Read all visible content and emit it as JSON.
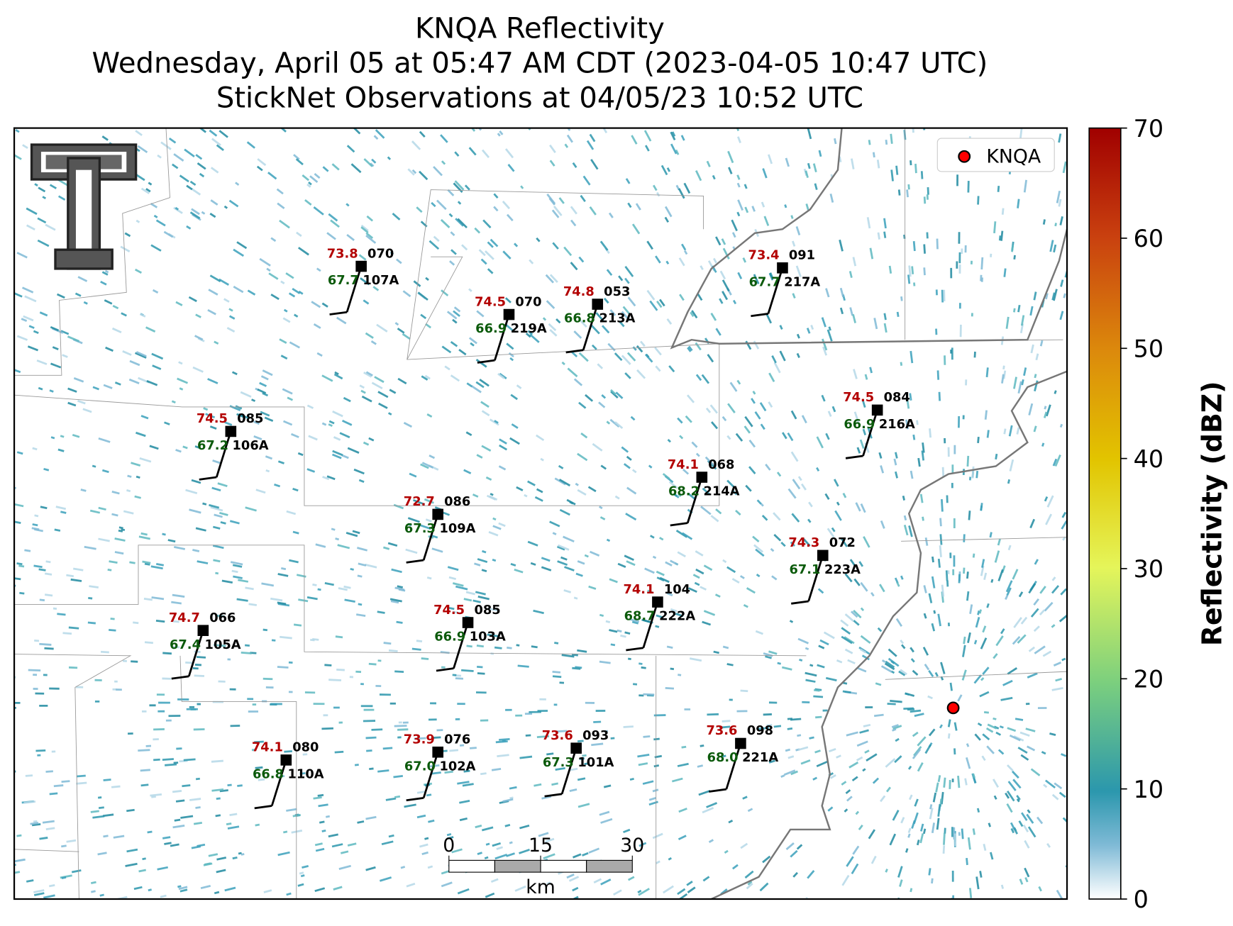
{
  "header": {
    "title": "KNQA Reflectivity",
    "subtitle": "Wednesday, April 05 at 05:47 AM CDT (2023-04-05 10:47 UTC)",
    "observations": "StickNet Observations at 04/05/23 10:52 UTC"
  },
  "legend": {
    "label": "KNQA"
  },
  "colorbar": {
    "label": "Reflectivity (dBZ)",
    "lim": [
      0,
      70
    ],
    "ticks": [
      0,
      10,
      20,
      30,
      40,
      50,
      60,
      70
    ]
  },
  "scale_bar": {
    "ticks": [
      0,
      15,
      30
    ],
    "unit": "km"
  },
  "stations": [
    {
      "id": "107A",
      "temperature": "73.8",
      "dewpoint": "67.7",
      "pressure": "070"
    },
    {
      "id": "219A",
      "temperature": "74.5",
      "dewpoint": "66.9",
      "pressure": "070"
    },
    {
      "id": "213A",
      "temperature": "74.8",
      "dewpoint": "66.8",
      "pressure": "053"
    },
    {
      "id": "217A",
      "temperature": "73.4",
      "dewpoint": "67.7",
      "pressure": "091"
    },
    {
      "id": "216A",
      "temperature": "74.5",
      "dewpoint": "66.9",
      "pressure": "084"
    },
    {
      "id": "106A",
      "temperature": "74.5",
      "dewpoint": "67.2",
      "pressure": "085"
    },
    {
      "id": "214A",
      "temperature": "74.1",
      "dewpoint": "68.2",
      "pressure": "068"
    },
    {
      "id": "109A",
      "temperature": "72.7",
      "dewpoint": "67.3",
      "pressure": "086"
    },
    {
      "id": "223A",
      "temperature": "74.3",
      "dewpoint": "67.1",
      "pressure": "072"
    },
    {
      "id": "222A",
      "temperature": "74.1",
      "dewpoint": "68.7",
      "pressure": "104"
    },
    {
      "id": "103A",
      "temperature": "74.5",
      "dewpoint": "66.9",
      "pressure": "085"
    },
    {
      "id": "105A",
      "temperature": "74.7",
      "dewpoint": "67.4",
      "pressure": "066"
    },
    {
      "id": "110A",
      "temperature": "74.1",
      "dewpoint": "66.8",
      "pressure": "080"
    },
    {
      "id": "102A",
      "temperature": "73.9",
      "dewpoint": "67.0",
      "pressure": "076"
    },
    {
      "id": "101A",
      "temperature": "73.6",
      "dewpoint": "67.3",
      "pressure": "093"
    },
    {
      "id": "221A",
      "temperature": "73.6",
      "dewpoint": "68.0",
      "pressure": "098"
    }
  ]
}
